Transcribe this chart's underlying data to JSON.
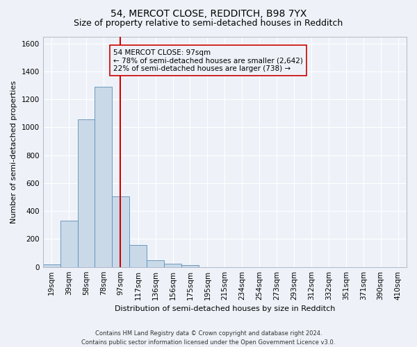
{
  "title": "54, MERCOT CLOSE, REDDITCH, B98 7YX",
  "subtitle": "Size of property relative to semi-detached houses in Redditch",
  "xlabel": "Distribution of semi-detached houses by size in Redditch",
  "ylabel": "Number of semi-detached properties",
  "bin_labels": [
    "19sqm",
    "39sqm",
    "58sqm",
    "78sqm",
    "97sqm",
    "117sqm",
    "136sqm",
    "156sqm",
    "175sqm",
    "195sqm",
    "215sqm",
    "234sqm",
    "254sqm",
    "273sqm",
    "293sqm",
    "312sqm",
    "332sqm",
    "351sqm",
    "371sqm",
    "390sqm",
    "410sqm"
  ],
  "bin_edges": [
    9.5,
    29,
    48.5,
    68,
    87.5,
    107,
    126.5,
    146,
    165.5,
    185,
    204.5,
    224,
    243.5,
    263,
    282.5,
    302,
    321.5,
    341,
    360.5,
    380,
    399.5,
    419
  ],
  "bar_values": [
    18,
    330,
    1055,
    1290,
    505,
    155,
    47,
    25,
    15,
    0,
    0,
    0,
    0,
    0,
    0,
    0,
    0,
    0,
    0,
    0,
    0
  ],
  "bar_color": "#c9d9e8",
  "bar_edgecolor": "#5b8db8",
  "property_size": 97,
  "vline_color": "#cc0000",
  "annotation_line1": "54 MERCOT CLOSE: 97sqm",
  "annotation_line2": "← 78% of semi-detached houses are smaller (2,642)",
  "annotation_line3": "22% of semi-detached houses are larger (738) →",
  "annotation_box_edgecolor": "#cc0000",
  "ylim": [
    0,
    1650
  ],
  "yticks": [
    0,
    200,
    400,
    600,
    800,
    1000,
    1200,
    1400,
    1600
  ],
  "footer_line1": "Contains HM Land Registry data © Crown copyright and database right 2024.",
  "footer_line2": "Contains public sector information licensed under the Open Government Licence v3.0.",
  "background_color": "#eef2f8",
  "grid_color": "#ffffff",
  "title_fontsize": 10,
  "subtitle_fontsize": 9,
  "axis_label_fontsize": 8,
  "tick_fontsize": 7.5,
  "annotation_fontsize": 7.5,
  "footer_fontsize": 6
}
